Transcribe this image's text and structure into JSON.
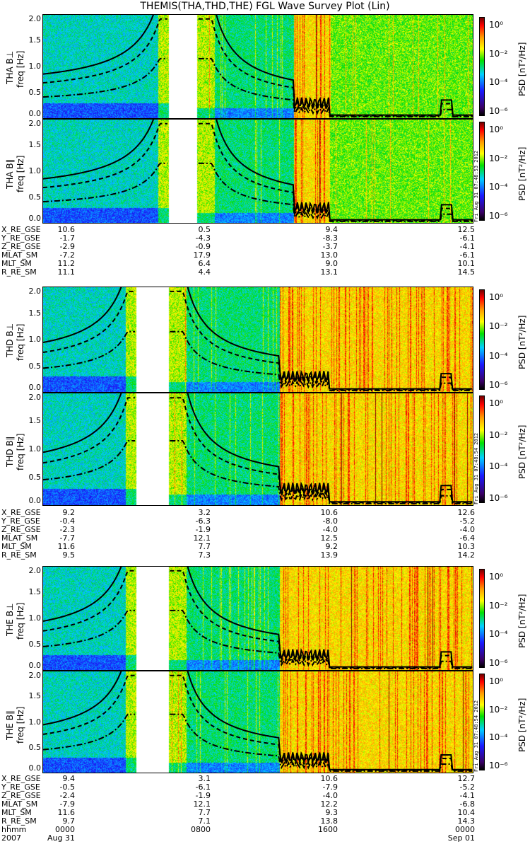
{
  "title": "THEMIS(THA,THD,THE) FGL Wave Survey Plot (Lin)",
  "colorbar": {
    "ticks": [
      "10⁰",
      "10⁻²",
      "10⁻⁴",
      "10⁻⁶"
    ],
    "label": "PSD [nT²/Hz]"
  },
  "freq_ticks": [
    "2.0",
    "1.5",
    "1.0",
    "0.5",
    "0.0"
  ],
  "freq_unit": "freq [Hz]",
  "colors": {
    "curve": "#000000",
    "gap": "#ffffff"
  },
  "chart_data": {
    "type": "heatmap",
    "title": "THEMIS(THA,THD,THE) FGL Wave Survey Plot (Lin)",
    "xlabel": "hhmm",
    "ylabel": "freq [Hz]",
    "ylim": [
      0,
      2.0
    ],
    "zlabel": "PSD [nT²/Hz]",
    "zlim_log10": [
      -6.5,
      1.5
    ],
    "x_hours": [
      0,
      24
    ],
    "panels": [
      {
        "probe": "THA",
        "component": "B⊥",
        "label": "THA B⊥",
        "gap_hours": [
          7.0,
          8.6
        ],
        "active_start_hours": 14.0,
        "active_end_hours": 16.0,
        "stamp": ""
      },
      {
        "probe": "THA",
        "component": "B∥",
        "label": "THA B∥",
        "gap_hours": [
          7.0,
          8.6
        ],
        "active_start_hours": 14.0,
        "active_end_hours": 16.0,
        "stamp": "Fri Aug 31 07:48:53 2012"
      },
      {
        "probe": "THD",
        "component": "B⊥",
        "label": "THD B⊥",
        "gap_hours": [
          5.2,
          7.0
        ],
        "active_start_hours": 13.2,
        "active_end_hours": 24.0,
        "stamp": ""
      },
      {
        "probe": "THD",
        "component": "B∥",
        "label": "THD B∥",
        "gap_hours": [
          5.2,
          7.0
        ],
        "active_start_hours": 13.2,
        "active_end_hours": 24.0,
        "stamp": "Fri Aug 31 07:48:54 2012"
      },
      {
        "probe": "THE",
        "component": "B⊥",
        "label": "THE B⊥",
        "gap_hours": [
          5.2,
          7.0
        ],
        "active_start_hours": 13.2,
        "active_end_hours": 24.0,
        "stamp": ""
      },
      {
        "probe": "THE",
        "component": "B∥",
        "label": "THE B∥",
        "gap_hours": [
          5.2,
          7.0
        ],
        "active_start_hours": 13.2,
        "active_end_hours": 24.0,
        "stamp": "Fri Aug 31 07:48:54 2012"
      }
    ]
  },
  "ephemeris": [
    {
      "probe": "THA",
      "rows": [
        {
          "name": "X_RE_GSE",
          "values": [
            "10.6",
            "0.5",
            "9.4",
            "12.5"
          ]
        },
        {
          "name": "Y_RE_GSE",
          "values": [
            "-1.7",
            "-4.3",
            "-8.3",
            "-6.1"
          ]
        },
        {
          "name": "Z_RE_GSE",
          "values": [
            "-2.9",
            "-0.9",
            "-3.7",
            "-4.1"
          ]
        },
        {
          "name": "MLAT_SM",
          "values": [
            "-7.2",
            "17.9",
            "13.0",
            "-6.1"
          ]
        },
        {
          "name": "MLT_SM",
          "values": [
            "11.2",
            "6.4",
            "9.0",
            "10.1"
          ]
        },
        {
          "name": "R_RE_SM",
          "values": [
            "11.1",
            "4.4",
            "13.1",
            "14.5"
          ]
        }
      ]
    },
    {
      "probe": "THD",
      "rows": [
        {
          "name": "X_RE_GSE",
          "values": [
            "9.2",
            "3.2",
            "10.6",
            "12.6"
          ]
        },
        {
          "name": "Y_RE_GSE",
          "values": [
            "-0.4",
            "-6.3",
            "-8.0",
            "-5.2"
          ]
        },
        {
          "name": "Z_RE_GSE",
          "values": [
            "-2.3",
            "-1.9",
            "-4.0",
            "-4.0"
          ]
        },
        {
          "name": "MLAT_SM",
          "values": [
            "-7.7",
            "12.1",
            "12.5",
            "-6.4"
          ]
        },
        {
          "name": "MLT_SM",
          "values": [
            "11.6",
            "7.7",
            "9.2",
            "10.3"
          ]
        },
        {
          "name": "R_RE_SM",
          "values": [
            "9.5",
            "7.3",
            "13.9",
            "14.2"
          ]
        }
      ]
    },
    {
      "probe": "THE",
      "rows": [
        {
          "name": "X_RE_GSE",
          "values": [
            "9.4",
            "3.1",
            "10.6",
            "12.7"
          ]
        },
        {
          "name": "Y_RE_GSE",
          "values": [
            "-0.5",
            "-6.1",
            "-7.9",
            "-5.2"
          ]
        },
        {
          "name": "Z_RE_GSE",
          "values": [
            "-2.4",
            "-1.9",
            "-4.0",
            "-4.1"
          ]
        },
        {
          "name": "MLAT_SM",
          "values": [
            "-7.9",
            "12.1",
            "12.2",
            "-6.8"
          ]
        },
        {
          "name": "MLT_SM",
          "values": [
            "11.6",
            "7.7",
            "9.3",
            "10.4"
          ]
        },
        {
          "name": "R_RE_SM",
          "values": [
            "9.7",
            "7.1",
            "13.8",
            "14.3"
          ]
        },
        {
          "name": "hhmm",
          "values": [
            "0000",
            "0800",
            "1600",
            "0000"
          ]
        },
        {
          "name": "2007",
          "values": [
            "Aug 31",
            "",
            "",
            "Sep 01"
          ]
        }
      ]
    }
  ]
}
